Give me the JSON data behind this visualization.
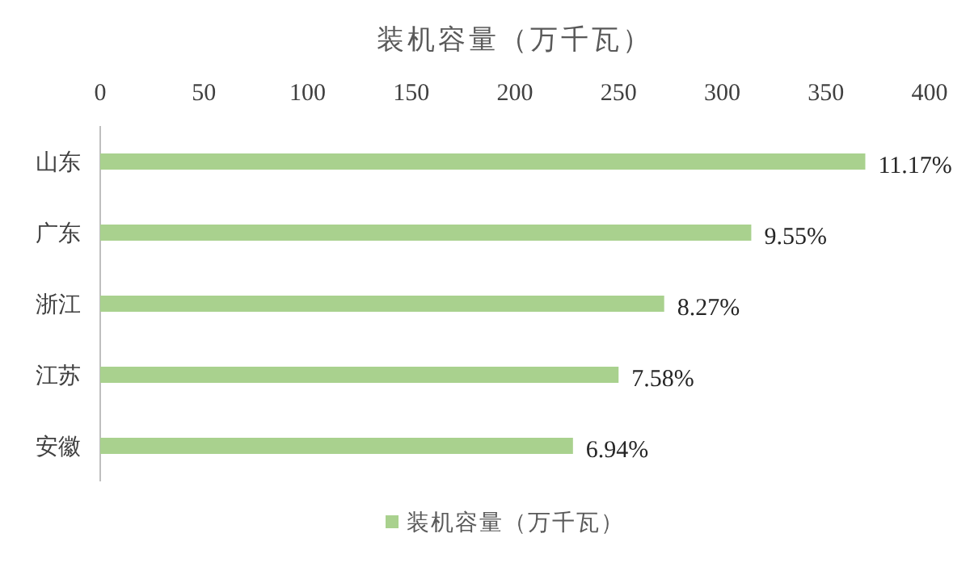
{
  "chart_data": {
    "type": "bar",
    "orientation": "horizontal",
    "title": "装机容量（万千瓦）",
    "categories": [
      "山东",
      "广东",
      "浙江",
      "江苏",
      "安徽"
    ],
    "series": [
      {
        "name": "装机容量（万千瓦）",
        "color": "#a9d18e",
        "values": [
          369,
          314,
          272,
          250,
          228
        ]
      }
    ],
    "annotations": [
      {
        "text": "11.17%",
        "x": 369,
        "y": "山东"
      },
      {
        "text": "9.55%",
        "x": 314,
        "y": "广东"
      },
      {
        "text": "8.27%",
        "x": 272,
        "y": "浙江"
      },
      {
        "text": "7.58%",
        "x": 250,
        "y": "江苏"
      },
      {
        "text": "6.94%",
        "x": 228,
        "y": "安徽"
      }
    ],
    "xlim": [
      0,
      400
    ],
    "xticks": [
      0,
      50,
      100,
      150,
      200,
      250,
      300,
      350,
      400
    ],
    "grid": false,
    "legend": "bottom"
  }
}
